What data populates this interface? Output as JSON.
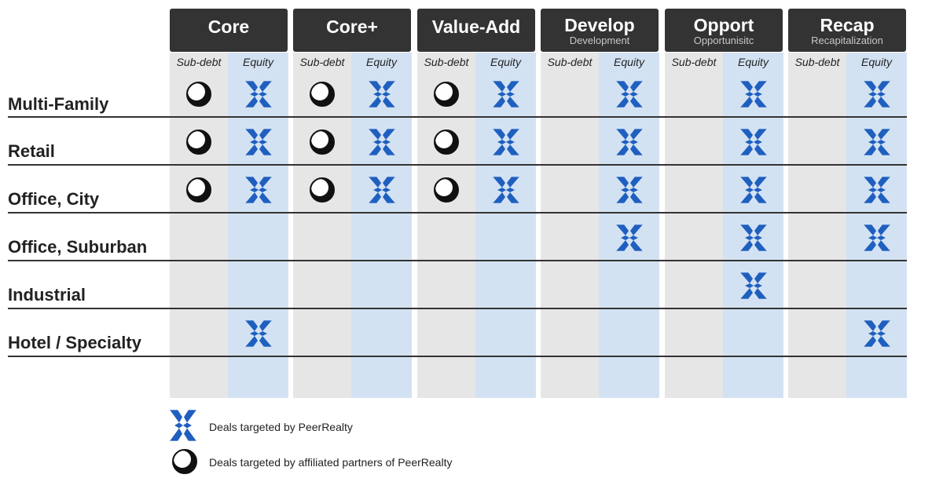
{
  "strategies": [
    {
      "key": "core",
      "title": "Core",
      "subtitle": ""
    },
    {
      "key": "coreplus",
      "title": "Core+",
      "subtitle": ""
    },
    {
      "key": "value",
      "title": "Value-Add",
      "subtitle": ""
    },
    {
      "key": "dev",
      "title": "Develop",
      "subtitle": "Development"
    },
    {
      "key": "opp",
      "title": "Opport",
      "subtitle": "Opportunisitc"
    },
    {
      "key": "recap",
      "title": "Recap",
      "subtitle": "Recapitalization"
    }
  ],
  "sub_labels": {
    "subdebt": "Sub-debt",
    "equity": "Equity"
  },
  "rows": [
    {
      "label": "Multi-Family",
      "cells": [
        [
          "circle",
          "x"
        ],
        [
          "circle",
          "x"
        ],
        [
          "circle",
          "x"
        ],
        [
          "",
          "x"
        ],
        [
          "",
          "x"
        ],
        [
          "",
          "x"
        ]
      ]
    },
    {
      "label": "Retail",
      "cells": [
        [
          "circle",
          "x"
        ],
        [
          "circle",
          "x"
        ],
        [
          "circle",
          "x"
        ],
        [
          "",
          "x"
        ],
        [
          "",
          "x"
        ],
        [
          "",
          "x"
        ]
      ]
    },
    {
      "label": "Office, City",
      "cells": [
        [
          "circle",
          "x"
        ],
        [
          "circle",
          "x"
        ],
        [
          "circle",
          "x"
        ],
        [
          "",
          "x"
        ],
        [
          "",
          "x"
        ],
        [
          "",
          "x"
        ]
      ]
    },
    {
      "label": "Office, Suburban",
      "cells": [
        [
          "",
          ""
        ],
        [
          "",
          ""
        ],
        [
          "",
          ""
        ],
        [
          "",
          "x"
        ],
        [
          "",
          "x"
        ],
        [
          "",
          "x"
        ]
      ]
    },
    {
      "label": "Industrial",
      "cells": [
        [
          "",
          ""
        ],
        [
          "",
          ""
        ],
        [
          "",
          ""
        ],
        [
          "",
          ""
        ],
        [
          "",
          "x"
        ],
        [
          "",
          ""
        ]
      ]
    },
    {
      "label": "Hotel / Specialty",
      "cells": [
        [
          "",
          "x"
        ],
        [
          "",
          ""
        ],
        [
          "",
          ""
        ],
        [
          "",
          ""
        ],
        [
          "",
          ""
        ],
        [
          "",
          "x"
        ]
      ]
    }
  ],
  "legend": {
    "peer": "Deals targeted by PeerRealty",
    "partners": "Deals targeted by affiliated partners of PeerRealty"
  },
  "colors": {
    "header": "#333333",
    "subdebt_bg": "#e6e6e6",
    "equity_bg": "#d3e2f3",
    "icon_blue": "#1f5fbf"
  },
  "icons": {
    "x": "peerrealty-x-icon",
    "circle": "partner-circle-icon"
  }
}
